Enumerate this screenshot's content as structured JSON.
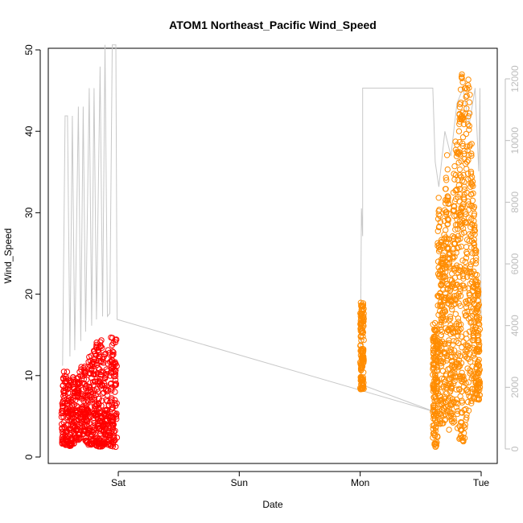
{
  "chart_data": {
    "type": "scatter",
    "title": "ATOM1 Northeast_Pacific Wind_Speed",
    "xlabel": "Date",
    "ylabel": "Wind_Speed",
    "x_ticks": [
      "Sat",
      "Sun",
      "Mon",
      "Tue"
    ],
    "x_tick_values": [
      1.0,
      2.0,
      3.0,
      4.0
    ],
    "xlim": [
      0.45,
      4.08
    ],
    "ylim": [
      0,
      50
    ],
    "y_ticks": [
      0,
      10,
      20,
      30,
      40,
      50
    ],
    "y2_ticks": [
      0,
      2000,
      4000,
      6000,
      8000,
      10000,
      12000
    ],
    "y2lim": [
      0,
      12400
    ],
    "grid": false,
    "series": [
      {
        "color": "#ff0000",
        "marker": "open-circle",
        "x_range": [
          0.53,
          0.99
        ],
        "envelope": [
          {
            "x": 0.53,
            "min": 1.5,
            "max": 10.5
          },
          {
            "x": 0.6,
            "min": 1.3,
            "max": 10.8
          },
          {
            "x": 0.65,
            "min": 1.8,
            "max": 9.5
          },
          {
            "x": 0.7,
            "min": 2.5,
            "max": 11.5
          },
          {
            "x": 0.75,
            "min": 1.5,
            "max": 12.2
          },
          {
            "x": 0.8,
            "min": 1.5,
            "max": 13.5
          },
          {
            "x": 0.85,
            "min": 1.2,
            "max": 15.0
          },
          {
            "x": 0.9,
            "min": 1.5,
            "max": 12.5
          },
          {
            "x": 0.95,
            "min": 1.3,
            "max": 15.3
          },
          {
            "x": 0.99,
            "min": 1.0,
            "max": 15.0
          }
        ]
      },
      {
        "color": "#ff8c00",
        "marker": "open-circle",
        "clusters": [
          {
            "x_range": [
              3.0,
              3.03
            ],
            "min": 8.3,
            "max": 19.0
          },
          {
            "x_range": [
              3.6,
              3.64
            ],
            "min": 1.0,
            "max": 16.5
          },
          {
            "x_range": [
              3.64,
              3.99
            ],
            "envelope": [
              {
                "x": 3.64,
                "min": 5.0,
                "max": 37.0
              },
              {
                "x": 3.68,
                "min": 3.0,
                "max": 25.0
              },
              {
                "x": 3.72,
                "min": 2.5,
                "max": 38.0
              },
              {
                "x": 3.75,
                "min": 4.0,
                "max": 20.0
              },
              {
                "x": 3.78,
                "min": 3.0,
                "max": 39.5
              },
              {
                "x": 3.81,
                "min": 1.5,
                "max": 39.0
              },
              {
                "x": 3.84,
                "min": 2.0,
                "max": 48.2
              },
              {
                "x": 3.87,
                "min": 1.5,
                "max": 45.0
              },
              {
                "x": 3.9,
                "min": 6.0,
                "max": 47.5
              },
              {
                "x": 3.93,
                "min": 5.5,
                "max": 35.0
              },
              {
                "x": 3.96,
                "min": 7.0,
                "max": 25.0
              },
              {
                "x": 3.99,
                "min": 7.0,
                "max": 17.5
              }
            ]
          }
        ]
      }
    ],
    "secondary_line": {
      "color": "#c8c8c8",
      "points": [
        [
          0.54,
          2700
        ],
        [
          0.56,
          10800
        ],
        [
          0.58,
          10800
        ],
        [
          0.6,
          3000
        ],
        [
          0.62,
          10800
        ],
        [
          0.64,
          3200
        ],
        [
          0.67,
          11100
        ],
        [
          0.69,
          3500
        ],
        [
          0.71,
          11100
        ],
        [
          0.73,
          3800
        ],
        [
          0.76,
          11700
        ],
        [
          0.78,
          4000
        ],
        [
          0.8,
          11700
        ],
        [
          0.82,
          4200
        ],
        [
          0.85,
          12400
        ],
        [
          0.87,
          4300
        ],
        [
          0.89,
          13100
        ],
        [
          0.91,
          4300
        ],
        [
          0.93,
          4400
        ],
        [
          0.95,
          13100
        ],
        [
          0.98,
          13100
        ],
        [
          0.99,
          4200
        ],
        [
          3.62,
          1200
        ],
        [
          3.0,
          2100
        ],
        [
          3.01,
          7800
        ],
        [
          3.02,
          6900
        ],
        [
          3.02,
          11700
        ],
        [
          3.6,
          11700
        ],
        [
          3.62,
          9300
        ],
        [
          3.65,
          8500
        ],
        [
          3.7,
          10300
        ],
        [
          3.75,
          9500
        ],
        [
          3.8,
          11200
        ],
        [
          3.85,
          11700
        ],
        [
          3.9,
          10500
        ],
        [
          3.95,
          11700
        ],
        [
          3.98,
          9000
        ],
        [
          3.99,
          11700
        ],
        [
          4.0,
          4200
        ]
      ]
    }
  }
}
